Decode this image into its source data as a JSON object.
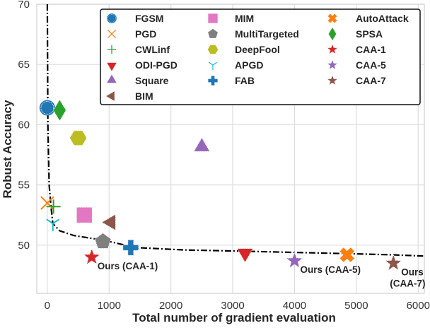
{
  "chart_data": {
    "type": "scatter",
    "title": "",
    "xlabel": "Total number of gradient evaluation",
    "ylabel": "Robust Accuracy",
    "xlim": [
      -170,
      6100
    ],
    "ylim": [
      46,
      70
    ],
    "xticks": [
      0,
      1000,
      2000,
      3000,
      4000,
      5000,
      6000
    ],
    "yticks": [
      50,
      55,
      60,
      65,
      70
    ],
    "grid": true,
    "legend_position": "top-right",
    "legend_columns": 3,
    "series": [
      {
        "name": "FGSM",
        "marker": "circle",
        "color": "#1f77b4",
        "x": 0,
        "y": 61.4
      },
      {
        "name": "PGD",
        "marker": "x",
        "color": "#ff7f0e",
        "x": 0,
        "y": 53.5
      },
      {
        "name": "CWLinf",
        "marker": "plus",
        "color": "#2ca02c",
        "x": 100,
        "y": 53.2
      },
      {
        "name": "ODI-PGD",
        "marker": "triangle-down",
        "color": "#d62728",
        "x": 3200,
        "y": 49.4
      },
      {
        "name": "Square",
        "marker": "triangle-up",
        "color": "#9467bd",
        "x": 2500,
        "y": 58.1
      },
      {
        "name": "BIM",
        "marker": "triangle-left",
        "color": "#8c564b",
        "x": 1030,
        "y": 51.9
      },
      {
        "name": "MIM",
        "marker": "square",
        "color": "#e377c2",
        "x": 600,
        "y": 52.5
      },
      {
        "name": "MultiTargeted",
        "marker": "pentagon",
        "color": "#7f7f7f",
        "x": 900,
        "y": 50.3
      },
      {
        "name": "DeepFool",
        "marker": "hexagon",
        "color": "#bcbd22",
        "x": 500,
        "y": 58.9
      },
      {
        "name": "APGD",
        "marker": "tri-down",
        "color": "#17becf",
        "x": 90,
        "y": 51.8
      },
      {
        "name": "FAB",
        "marker": "plus-filled",
        "color": "#1f77b4",
        "x": 1350,
        "y": 49.8
      },
      {
        "name": "AutoAttack",
        "marker": "x-filled",
        "color": "#ff7f0e",
        "x": 4850,
        "y": 49.2
      },
      {
        "name": "SPSA",
        "marker": "diamond",
        "color": "#2ca02c",
        "x": 200,
        "y": 61.2
      },
      {
        "name": "CAA-1",
        "marker": "star",
        "color": "#d62728",
        "x": 720,
        "y": 49.0
      },
      {
        "name": "CAA-5",
        "marker": "star",
        "color": "#9467bd",
        "x": 4000,
        "y": 48.7
      },
      {
        "name": "CAA-7",
        "marker": "star",
        "color": "#8c564b",
        "x": 5600,
        "y": 48.5
      }
    ],
    "frontier": {
      "style": "dash-dot",
      "color": "#000000",
      "x": [
        0,
        10,
        30,
        60,
        90,
        200,
        430,
        920,
        1430,
        2220,
        3200,
        4000,
        4850,
        5600,
        6080
      ],
      "y": [
        70,
        60,
        55,
        53.2,
        51.8,
        51.2,
        50.8,
        50.4,
        49.8,
        49.6,
        49.5,
        49.4,
        49.3,
        49.2,
        49.1
      ]
    },
    "annotations": [
      {
        "text": "Ours (CAA-1)",
        "x": 720,
        "y": 49.0
      },
      {
        "text": "Ours (CAA-5)",
        "x": 4000,
        "y": 48.7
      },
      {
        "text": "Ours\n(CAA-7)",
        "x": 5600,
        "y": 48.5
      }
    ]
  }
}
